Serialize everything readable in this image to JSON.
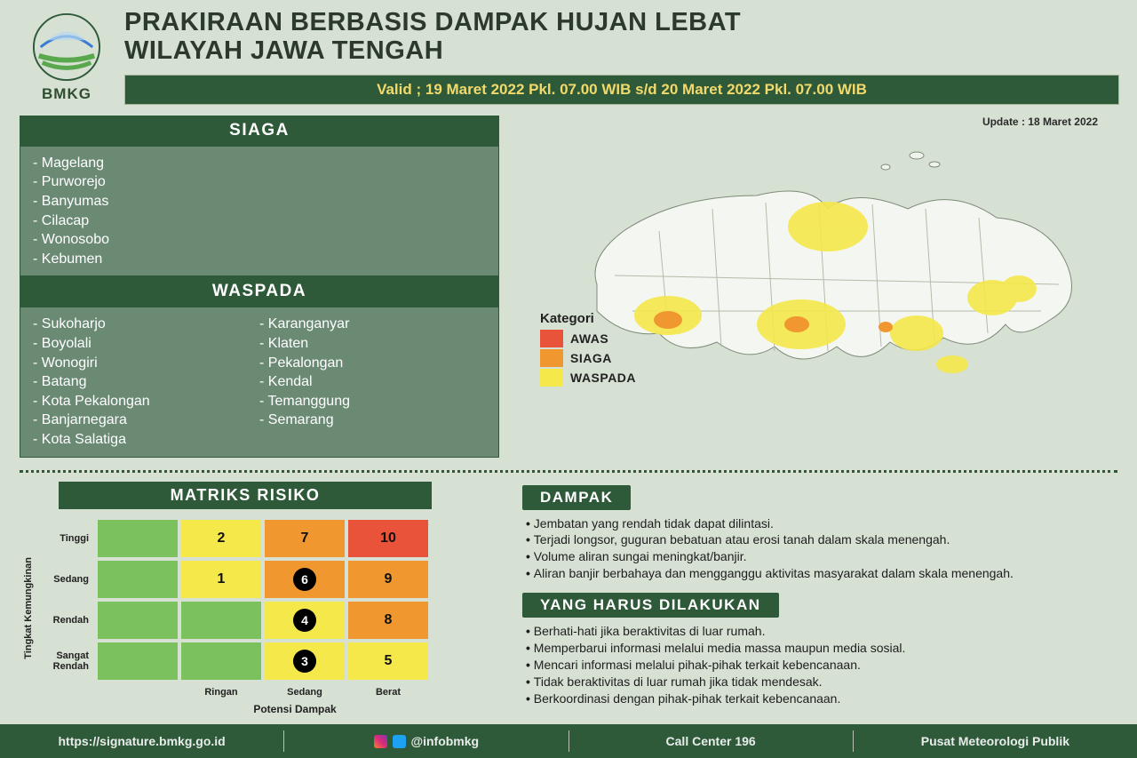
{
  "colors": {
    "page_bg": "#d6e0d3",
    "dark_green": "#2f5a39",
    "mid_green": "#6b8a74",
    "siaga_panel_text": "#ffffff",
    "valid_text": "#f2d96b",
    "awas": "#e8533a",
    "siaga": "#f0982f",
    "waspada": "#f5e84a",
    "matrix_green": "#7bc15e",
    "matrix_yellow": "#f5e84a",
    "matrix_orange": "#f0982f",
    "matrix_red": "#e8533a"
  },
  "header": {
    "org": "BMKG",
    "title_line1": "PRAKIRAAN BERBASIS DAMPAK HUJAN LEBAT",
    "title_line2": "WILAYAH JAWA TENGAH",
    "valid_label": "Valid ;",
    "valid_text": "19 Maret 2022 Pkl. 07.00 WIB s/d 20 Maret 2022 Pkl. 07.00 WIB"
  },
  "update_label": "Update : 18 Maret 2022",
  "siaga": {
    "title": "SIAGA",
    "list": [
      "Magelang",
      "Purworejo",
      "Banyumas",
      "Cilacap",
      "Wonosobo",
      "Kebumen"
    ]
  },
  "waspada": {
    "title": "WASPADA",
    "col1": [
      "Sukoharjo",
      "Boyolali",
      "Wonogiri",
      "Batang",
      "Kota Pekalongan",
      "Banjarnegara",
      "Kota Salatiga"
    ],
    "col2": [
      "Karanganyar",
      "Klaten",
      "Pekalongan",
      "Kendal",
      "Temanggung",
      "Semarang"
    ]
  },
  "legend": {
    "title": "Kategori",
    "items": [
      {
        "label": "AWAS",
        "color": "#e8533a"
      },
      {
        "label": "SIAGA",
        "color": "#f0982f"
      },
      {
        "label": "WASPADA",
        "color": "#f5e84a"
      }
    ]
  },
  "matrix": {
    "title": "MATRIKS RISIKO",
    "yaxis": "Tingkat Kemungkinan",
    "xaxis": "Potensi Dampak",
    "row_labels": [
      "Tinggi",
      "Sedang",
      "Rendah",
      "Sangat Rendah"
    ],
    "col_labels": [
      "Ringan",
      "Sedang",
      "Berat"
    ],
    "cells": [
      [
        {
          "v": "",
          "c": "#7bc15e"
        },
        {
          "v": "2",
          "c": "#f5e84a"
        },
        {
          "v": "7",
          "c": "#f0982f"
        },
        {
          "v": "10",
          "c": "#e8533a"
        }
      ],
      [
        {
          "v": "",
          "c": "#7bc15e"
        },
        {
          "v": "1",
          "c": "#f5e84a"
        },
        {
          "v": "6",
          "c": "#f0982f",
          "circle": true
        },
        {
          "v": "9",
          "c": "#f0982f"
        }
      ],
      [
        {
          "v": "",
          "c": "#7bc15e"
        },
        {
          "v": "",
          "c": "#7bc15e"
        },
        {
          "v": "4",
          "c": "#f5e84a",
          "circle": true
        },
        {
          "v": "8",
          "c": "#f0982f"
        }
      ],
      [
        {
          "v": "",
          "c": "#7bc15e"
        },
        {
          "v": "",
          "c": "#7bc15e"
        },
        {
          "v": "3",
          "c": "#f5e84a",
          "circle": true
        },
        {
          "v": "5",
          "c": "#f5e84a"
        }
      ]
    ]
  },
  "dampak": {
    "title": "DAMPAK",
    "items": [
      "Jembatan yang rendah tidak dapat dilintasi.",
      "Terjadi longsor, guguran bebatuan atau erosi tanah dalam skala menengah.",
      "Volume aliran sungai meningkat/banjir.",
      "Aliran banjir berbahaya dan mengganggu aktivitas masyarakat dalam skala menengah."
    ]
  },
  "action": {
    "title": "YANG HARUS DILAKUKAN",
    "items": [
      "Berhati-hati jika beraktivitas di luar rumah.",
      "Memperbarui informasi melalui media massa maupun media sosial.",
      "Mencari informasi melalui pihak-pihak terkait kebencanaan.",
      "Tidak beraktivitas di luar rumah jika tidak mendesak.",
      "Berkoordinasi dengan pihak-pihak terkait kebencanaan."
    ]
  },
  "footer": {
    "url": "https://signature.bmkg.go.id",
    "handle": "@infobmkg",
    "call": "Call Center 196",
    "org": "Pusat Meteorologi Publik"
  }
}
